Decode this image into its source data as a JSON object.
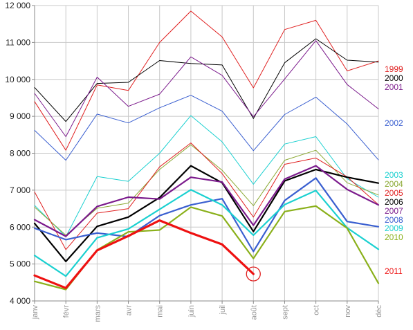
{
  "chart_data": {
    "type": "line",
    "title": "",
    "xlabel": "",
    "ylabel": "",
    "x": [
      "janv",
      "févr",
      "mars",
      "avr",
      "mai",
      "juin",
      "juil",
      "août",
      "sept",
      "oct",
      "nov",
      "déc"
    ],
    "ylim": [
      4000,
      12000
    ],
    "yticks": [
      4000,
      5000,
      6000,
      7000,
      8000,
      9000,
      10000,
      11000,
      12000
    ],
    "ytick_labels": [
      "4 000",
      "5 000",
      "6 000",
      "7 000",
      "8 000",
      "9 000",
      "10 000",
      "11 000",
      "12 000"
    ],
    "grid": true,
    "legend_position": "right",
    "series": [
      {
        "name": "1999",
        "color": "#e02020",
        "width": 1,
        "values": [
          9400,
          8080,
          9850,
          9700,
          11000,
          11850,
          11150,
          9770,
          11350,
          11600,
          10230,
          10500
        ]
      },
      {
        "name": "2000",
        "color": "#000000",
        "width": 1,
        "values": [
          9780,
          8860,
          9890,
          9920,
          10510,
          10430,
          10390,
          8940,
          10450,
          11100,
          10520,
          10470
        ]
      },
      {
        "name": "2001",
        "color": "#7b1a8c",
        "width": 1,
        "values": [
          9620,
          8450,
          10060,
          9270,
          9600,
          10610,
          10110,
          8990,
          10010,
          11050,
          9860,
          9200
        ]
      },
      {
        "name": "2002",
        "color": "#3a5fd0",
        "width": 1,
        "values": [
          8620,
          7810,
          9060,
          8820,
          9230,
          9570,
          9140,
          8070,
          9050,
          9520,
          8790,
          7820
        ]
      },
      {
        "name": "2003",
        "color": "#1ad0d0",
        "width": 1,
        "values": [
          6590,
          5740,
          7370,
          7240,
          8000,
          9020,
          8310,
          7160,
          8250,
          8450,
          7310,
          6810
        ]
      },
      {
        "name": "2004",
        "color": "#8aa832",
        "width": 1,
        "values": [
          6540,
          5780,
          6510,
          6650,
          7560,
          8230,
          7540,
          6580,
          7810,
          8080,
          7200,
          6870
        ]
      },
      {
        "name": "2005",
        "color": "#e02020",
        "width": 1,
        "values": [
          6950,
          5390,
          6380,
          6500,
          7630,
          8280,
          7450,
          6270,
          7700,
          7870,
          7360,
          6610
        ]
      },
      {
        "name": "2006",
        "color": "#000000",
        "width": 2.2,
        "values": [
          6100,
          5070,
          6020,
          6270,
          6800,
          7660,
          7200,
          5880,
          7250,
          7560,
          7350,
          7190
        ]
      },
      {
        "name": "2007",
        "color": "#7b1a8c",
        "width": 2.2,
        "values": [
          6200,
          5750,
          6560,
          6810,
          6760,
          7350,
          7220,
          6050,
          7300,
          7660,
          7020,
          6600
        ]
      },
      {
        "name": "2008",
        "color": "#3a5fd0",
        "width": 2.2,
        "values": [
          5970,
          5660,
          5840,
          5740,
          6310,
          6600,
          6770,
          5340,
          6720,
          7330,
          6150,
          6010
        ]
      },
      {
        "name": "2009",
        "color": "#1ad0d0",
        "width": 2.2,
        "values": [
          5230,
          4670,
          5710,
          5950,
          6480,
          7010,
          6600,
          5780,
          6610,
          6990,
          5980,
          5400
        ]
      },
      {
        "name": "2010",
        "color": "#8ab01a",
        "width": 2.2,
        "values": [
          4530,
          4310,
          5380,
          5870,
          5920,
          6540,
          6300,
          5150,
          6420,
          6570,
          5970,
          4480
        ]
      },
      {
        "name": "2011",
        "color": "#ee1111",
        "width": 3.2,
        "values": [
          4690,
          4350,
          5370,
          5760,
          6180,
          5840,
          5530,
          4730,
          null,
          null,
          null,
          null
        ]
      }
    ],
    "annotation": {
      "series": "2011",
      "x": "août",
      "y": 4730,
      "shape": "circle",
      "color": "#e02020"
    }
  }
}
